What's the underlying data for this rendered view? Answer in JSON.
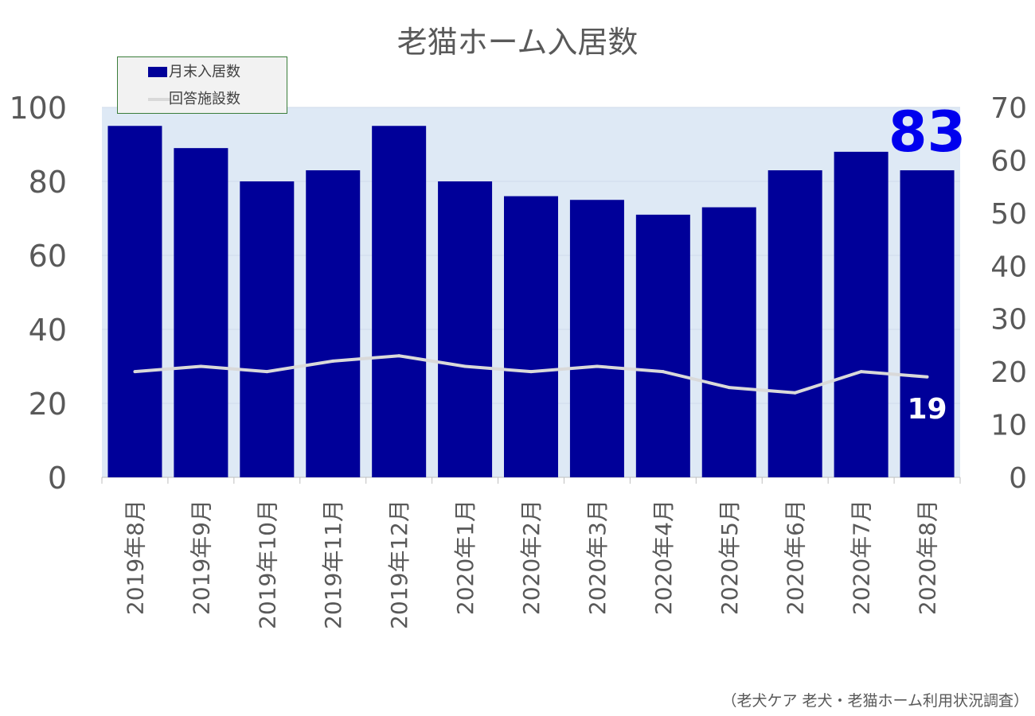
{
  "title": "老猫ホーム入居数",
  "source_note": "（老犬ケア 老犬・老猫ホーム利用状況調査）",
  "colors": {
    "bar": "#000099",
    "line": "#d9d9d9",
    "plot_background": "#dee9f5",
    "highlight_bar_label": "#0000ee",
    "highlight_line_label": "#ffffff",
    "axis_text": "#595959"
  },
  "chart_data": {
    "type": "bar",
    "title": "老猫ホーム入居数",
    "categories": [
      "2019年8月",
      "2019年9月",
      "2019年10月",
      "2019年11月",
      "2019年12月",
      "2020年1月",
      "2020年2月",
      "2020年3月",
      "2020年4月",
      "2020年5月",
      "2020年6月",
      "2020年7月",
      "2020年8月"
    ],
    "series": [
      {
        "name": "月末入居数",
        "type": "bar",
        "axis": "left",
        "values": [
          95,
          89,
          80,
          83,
          95,
          80,
          76,
          75,
          71,
          73,
          83,
          88,
          83
        ]
      },
      {
        "name": "回答施設数",
        "type": "line",
        "axis": "right",
        "values": [
          20,
          21,
          20,
          22,
          23,
          21,
          20,
          21,
          20,
          17,
          16,
          20,
          19
        ]
      }
    ],
    "y_left": {
      "range": [
        0,
        100
      ],
      "ticks": [
        "0",
        "20",
        "40",
        "60",
        "80",
        "100"
      ]
    },
    "y_right": {
      "range": [
        0,
        70
      ],
      "ticks": [
        "0",
        "10",
        "20",
        "30",
        "40",
        "50",
        "60",
        "70"
      ]
    },
    "legend_position": "top-left",
    "grid": true,
    "highlight_labels": {
      "bar_last": "83",
      "line_last": "19"
    }
  }
}
